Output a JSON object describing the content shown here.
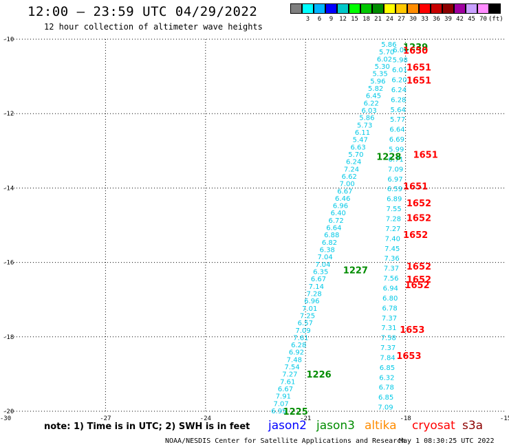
{
  "header": {
    "title": "12:00 — 23:59 UTC 04/29/2022",
    "subtitle": "12 hour collection of altimeter wave heights"
  },
  "color_scale": {
    "cells": [
      {
        "color": "#7f7f7f",
        "label": ""
      },
      {
        "color": "#00ffff",
        "label": "3"
      },
      {
        "color": "#00b4ff",
        "label": "6"
      },
      {
        "color": "#0000ff",
        "label": "9"
      },
      {
        "color": "#00c8c8",
        "label": "12"
      },
      {
        "color": "#00ff00",
        "label": "15"
      },
      {
        "color": "#00c800",
        "label": "18"
      },
      {
        "color": "#008c00",
        "label": "21"
      },
      {
        "color": "#ffff00",
        "label": "24"
      },
      {
        "color": "#ffc800",
        "label": "27"
      },
      {
        "color": "#ff8c00",
        "label": "30"
      },
      {
        "color": "#ff0000",
        "label": "33"
      },
      {
        "color": "#c80000",
        "label": "36"
      },
      {
        "color": "#8c0000",
        "label": "39"
      },
      {
        "color": "#a000a0",
        "label": "42"
      },
      {
        "color": "#c8a0ff",
        "label": "45"
      },
      {
        "color": "#ff8cff",
        "label": "70"
      },
      {
        "color": "#000000",
        "label": "(ft)"
      }
    ]
  },
  "note": "note: 1) Time is in UTC; 2) SWH is in feet",
  "legend": [
    {
      "name": "jason2",
      "color": "#0000ff"
    },
    {
      "name": "jason3",
      "color": "#008c00"
    },
    {
      "name": "altika",
      "color": "#ff8c00"
    },
    {
      "name": "cryosat",
      "color": "#ff0000"
    },
    {
      "name": "s3a",
      "color": "#8c0000"
    }
  ],
  "footer": {
    "credit": "NOAA/NESDIS Center for Satellite Applications and Research",
    "timestamp": "May  1 08:30:25 UTC 2022"
  },
  "chart_data": {
    "type": "scatter",
    "xlim": [
      -30,
      -15
    ],
    "ylim": [
      -20,
      -10
    ],
    "x_ticks": [
      "-30",
      "-27",
      "-24",
      "-21",
      "-18",
      "-15"
    ],
    "y_ticks": [
      "-10",
      "-12",
      "-14",
      "-16",
      "-18",
      "-20"
    ],
    "grid": true,
    "swh_color": "#00c8e6",
    "passes": [
      {
        "name": "track-a",
        "x0": -21.8,
        "y0": -20,
        "x1": -18.5,
        "y1": -10.15,
        "values": [
          "6.95",
          "7.07",
          "7.91",
          "6.67",
          "7.61",
          "7.27",
          "7.54",
          "7.48",
          "6.92",
          "6.28",
          "7.61",
          "7.09",
          "6.57",
          "7.25",
          "7.01",
          "6.96",
          "7.28",
          "7.14",
          "6.67",
          "6.35",
          "7.04",
          "7.04",
          "6.38",
          "6.82",
          "6.88",
          "6.64",
          "6.72",
          "6.40",
          "6.96",
          "6.46",
          "6.67",
          "7.00",
          "6.62",
          "7.24",
          "6.24",
          "5.70",
          "6.63",
          "5.47",
          "6.11",
          "5.73",
          "5.86",
          "6.03",
          "6.22",
          "6.45",
          "5.82",
          "5.96",
          "5.35",
          "5.30",
          "6.02",
          "5.70",
          "5.86"
        ]
      },
      {
        "name": "track-b",
        "x0": -18.6,
        "y0": -19.9,
        "x1": -18.15,
        "y1": -10.3,
        "values": [
          "7.09",
          "6.85",
          "6.78",
          "6.32",
          "6.85",
          "7.84",
          "7.37",
          "7.58",
          "7.31",
          "7.37",
          "6.78",
          "6.80",
          "6.94",
          "7.56",
          "7.37",
          "7.36",
          "7.45",
          "7.40",
          "7.27",
          "7.28",
          "7.55",
          "6.89",
          "6.59",
          "6.97",
          "7.09",
          "6.71",
          "5.99",
          "6.69",
          "6.64",
          "5.77",
          "5.64",
          "6.28",
          "6.24",
          "6.20",
          "6.01",
          "5.98",
          "6.06"
        ]
      }
    ],
    "time_labels": [
      {
        "label": "1225",
        "sat": "jason3",
        "x": -21.3,
        "y": -20.0
      },
      {
        "label": "1226",
        "sat": "jason3",
        "x": -20.6,
        "y": -19.0
      },
      {
        "label": "1227",
        "sat": "jason3",
        "x": -19.5,
        "y": -16.2
      },
      {
        "label": "1228",
        "sat": "jason3",
        "x": -18.5,
        "y": -13.15
      },
      {
        "label": "1239",
        "sat": "jason3",
        "x": -17.7,
        "y": -10.2
      },
      {
        "label": "1653",
        "sat": "cryosat",
        "x": -17.9,
        "y": -18.5
      },
      {
        "label": "1653",
        "sat": "cryosat",
        "x": -17.8,
        "y": -17.8
      },
      {
        "label": "1652",
        "sat": "cryosat",
        "x": -17.65,
        "y": -16.6
      },
      {
        "label": "1652",
        "sat": "cryosat",
        "x": -17.6,
        "y": -16.45
      },
      {
        "label": "1652",
        "sat": "cryosat",
        "x": -17.6,
        "y": -16.1
      },
      {
        "label": "1652",
        "sat": "cryosat",
        "x": -17.7,
        "y": -15.25
      },
      {
        "label": "1652",
        "sat": "cryosat",
        "x": -17.6,
        "y": -14.8
      },
      {
        "label": "1652",
        "sat": "cryosat",
        "x": -17.6,
        "y": -14.4
      },
      {
        "label": "1651",
        "sat": "cryosat",
        "x": -17.7,
        "y": -13.95
      },
      {
        "label": "1651",
        "sat": "cryosat",
        "x": -17.4,
        "y": -13.1
      },
      {
        "label": "1651",
        "sat": "cryosat",
        "x": -17.6,
        "y": -11.1
      },
      {
        "label": "1651",
        "sat": "cryosat",
        "x": -17.6,
        "y": -10.75
      },
      {
        "label": "1650",
        "sat": "cryosat",
        "x": -17.7,
        "y": -10.3
      }
    ]
  }
}
